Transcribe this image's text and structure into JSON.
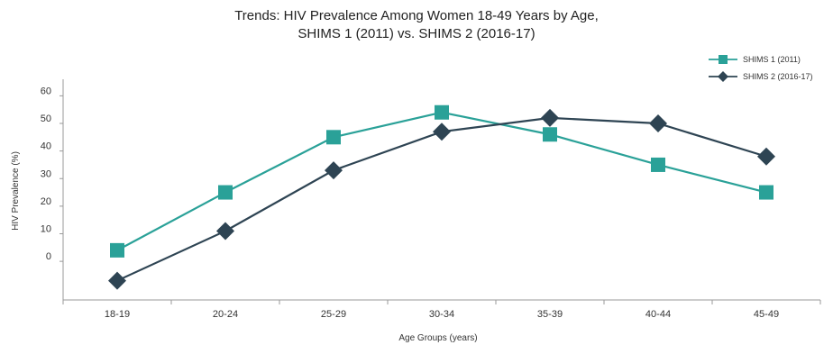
{
  "chart_data": {
    "type": "line",
    "title_line1": "Trends: HIV Prevalence Among Women 18-49 Years by Age,",
    "title_line2": "SHIMS 1 (2011) vs. SHIMS 2 (2016-17)",
    "xlabel": "Age Groups (years)",
    "ylabel": "HIV Prevalence (%)",
    "categories": [
      "18-19",
      "20-24",
      "25-29",
      "30-34",
      "35-39",
      "40-44",
      "45-49"
    ],
    "y_ticks": [
      "60",
      "50",
      "40",
      "30",
      "20",
      "10",
      "0"
    ],
    "y_tick_values": [
      60,
      50,
      40,
      30,
      20,
      10,
      0
    ],
    "ylim": [
      -14,
      66
    ],
    "legend_position": "top-right",
    "series": [
      {
        "name": "SHIMS 1 (2011)",
        "marker": "square",
        "color": "#2aa198",
        "values": [
          4,
          25,
          45,
          54,
          46,
          35,
          25
        ]
      },
      {
        "name": "SHIMS 2 (2016-17)",
        "marker": "diamond",
        "color": "#2e4453",
        "values": [
          -7,
          11,
          33,
          47,
          52,
          50,
          38
        ]
      }
    ]
  }
}
